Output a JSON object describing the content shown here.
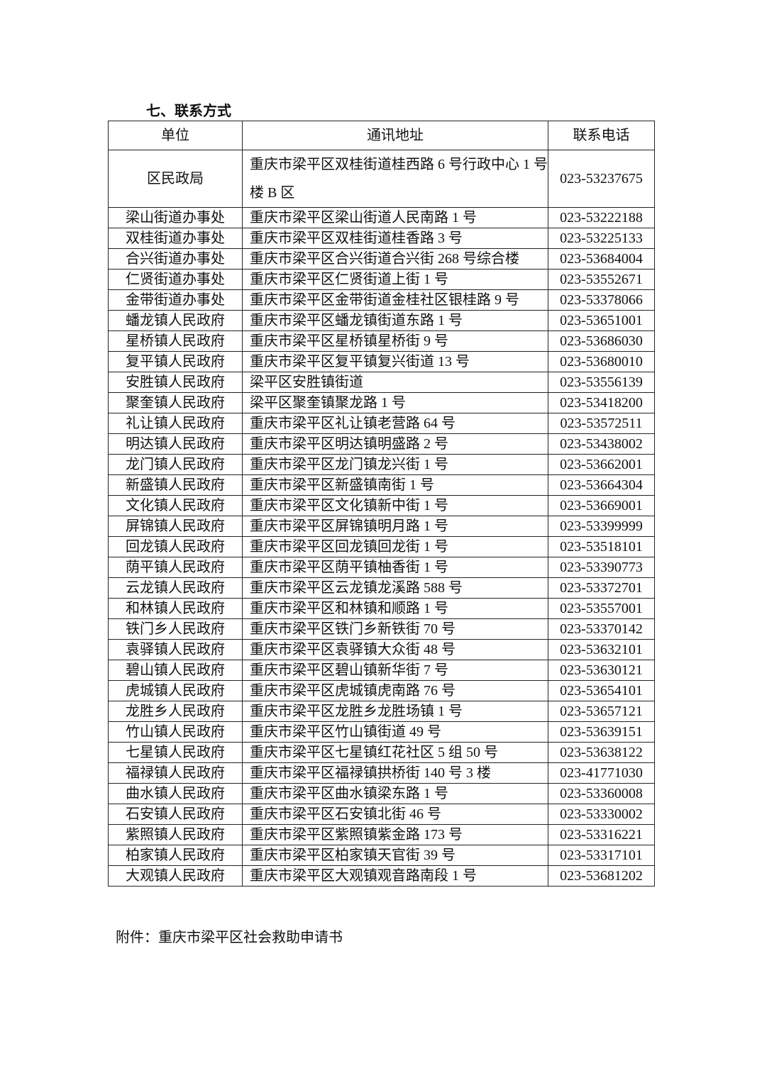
{
  "section_title": "七、联系方式",
  "table": {
    "headers": [
      "单位",
      "通讯地址",
      "联系电话"
    ],
    "rows": [
      [
        "区民政局",
        "重庆市梁平区双桂街道桂西路 6 号行政中心 1 号楼 B 区",
        "023-53237675"
      ],
      [
        "梁山街道办事处",
        "重庆市梁平区梁山街道人民南路 1 号",
        "023-53222188"
      ],
      [
        "双桂街道办事处",
        "重庆市梁平区双桂街道桂香路 3 号",
        "023-53225133"
      ],
      [
        "合兴街道办事处",
        "重庆市梁平区合兴街道合兴街 268 号综合楼",
        "023-53684004"
      ],
      [
        "仁贤街道办事处",
        "重庆市梁平区仁贤街道上街 1 号",
        "023-53552671"
      ],
      [
        "金带街道办事处",
        "重庆市梁平区金带街道金桂社区银桂路 9 号",
        "023-53378066"
      ],
      [
        "蟠龙镇人民政府",
        "重庆市梁平区蟠龙镇街道东路 1 号",
        "023-53651001"
      ],
      [
        "星桥镇人民政府",
        "重庆市梁平区星桥镇星桥街 9 号",
        "023-53686030"
      ],
      [
        "复平镇人民政府",
        "重庆市梁平区复平镇复兴街道 13 号",
        "023-53680010"
      ],
      [
        "安胜镇人民政府",
        "梁平区安胜镇街道",
        "023-53556139"
      ],
      [
        "聚奎镇人民政府",
        "梁平区聚奎镇聚龙路 1 号",
        "023-53418200"
      ],
      [
        "礼让镇人民政府",
        "重庆市梁平区礼让镇老营路 64 号",
        "023-53572511"
      ],
      [
        "明达镇人民政府",
        "重庆市梁平区明达镇明盛路 2 号",
        "023-53438002"
      ],
      [
        "龙门镇人民政府",
        "重庆市梁平区龙门镇龙兴街 1 号",
        "023-53662001"
      ],
      [
        "新盛镇人民政府",
        "重庆市梁平区新盛镇南街 1 号",
        "023-53664304"
      ],
      [
        "文化镇人民政府",
        "重庆市梁平区文化镇新中街 1 号",
        "023-53669001"
      ],
      [
        "屏锦镇人民政府",
        "重庆市梁平区屏锦镇明月路 1 号",
        "023-53399999"
      ],
      [
        "回龙镇人民政府",
        "重庆市梁平区回龙镇回龙街 1 号",
        "023-53518101"
      ],
      [
        "荫平镇人民政府",
        "重庆市梁平区荫平镇柚香街 1 号",
        "023-53390773"
      ],
      [
        "云龙镇人民政府",
        "重庆市梁平区云龙镇龙溪路 588 号",
        "023-53372701"
      ],
      [
        "和林镇人民政府",
        "重庆市梁平区和林镇和顺路 1 号",
        "023-53557001"
      ],
      [
        "铁门乡人民政府",
        "重庆市梁平区铁门乡新铁街 70 号",
        "023-53370142"
      ],
      [
        "袁驿镇人民政府",
        "重庆市梁平区袁驿镇大众街 48 号",
        "023-53632101"
      ],
      [
        "碧山镇人民政府",
        "重庆市梁平区碧山镇新华街 7 号",
        "023-53630121"
      ],
      [
        "虎城镇人民政府",
        "重庆市梁平区虎城镇虎南路 76 号",
        "023-53654101"
      ],
      [
        "龙胜乡人民政府",
        "重庆市梁平区龙胜乡龙胜场镇 1 号",
        "023-53657121"
      ],
      [
        "竹山镇人民政府",
        "重庆市梁平区竹山镇街道 49 号",
        "023-53639151"
      ],
      [
        "七星镇人民政府",
        "重庆市梁平区七星镇红花社区 5 组 50 号",
        "023-53638122"
      ],
      [
        "福禄镇人民政府",
        "重庆市梁平区福禄镇拱桥街 140 号 3 楼",
        "023-41771030"
      ],
      [
        "曲水镇人民政府",
        "重庆市梁平区曲水镇梁东路 1 号",
        "023-53360008"
      ],
      [
        "石安镇人民政府",
        "重庆市梁平区石安镇北街 46 号",
        "023-53330002"
      ],
      [
        "紫照镇人民政府",
        "重庆市梁平区紫照镇紫金路 173 号",
        "023-53316221"
      ],
      [
        "柏家镇人民政府",
        "重庆市梁平区柏家镇天官街 39 号",
        "023-53317101"
      ],
      [
        "大观镇人民政府",
        "重庆市梁平区大观镇观音路南段 1 号",
        "023-53681202"
      ]
    ]
  },
  "attachment": "附件：重庆市梁平区社会救助申请书"
}
